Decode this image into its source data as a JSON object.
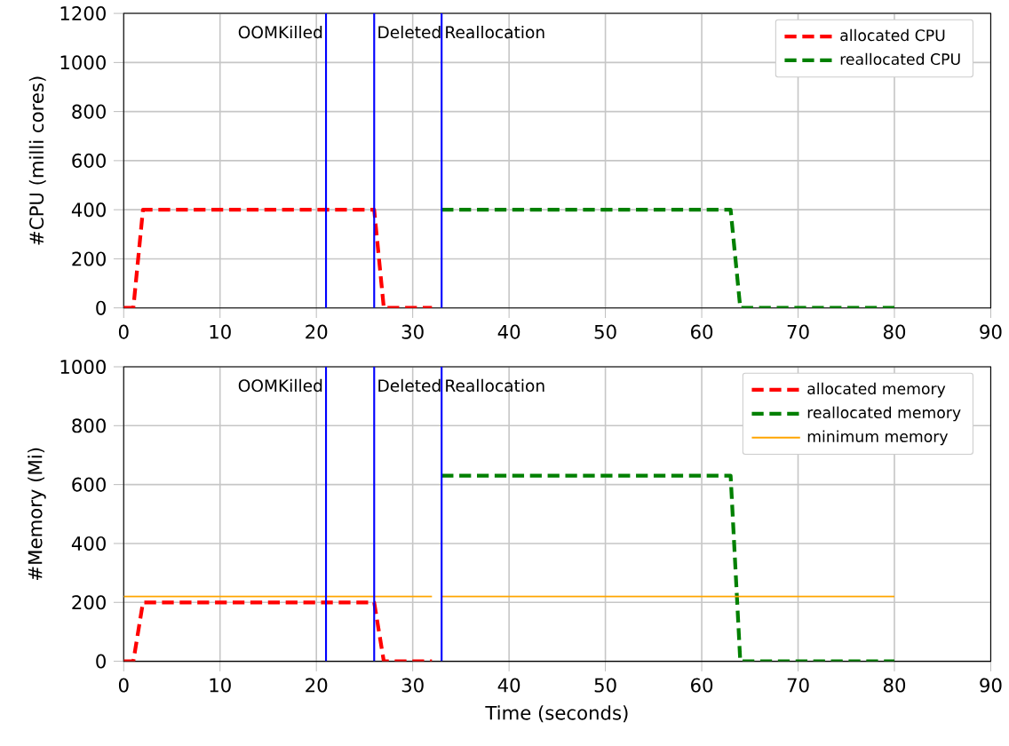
{
  "chart_data": [
    {
      "type": "line",
      "ylabel": "#CPU (milli cores)",
      "xlim": [
        0,
        90
      ],
      "xticks": [
        0,
        10,
        20,
        30,
        40,
        50,
        60,
        70,
        80,
        90
      ],
      "ylim": [
        0,
        1200
      ],
      "yticks": [
        0,
        200,
        400,
        600,
        800,
        1000,
        1200
      ],
      "grid": true,
      "legend": "top right",
      "marker": "none",
      "series": [
        {
          "name": "allocated CPU",
          "color": "#ff0000",
          "line_style": "dashed",
          "x": [
            0,
            1,
            2,
            26,
            27,
            32
          ],
          "values": [
            0,
            0,
            400,
            400,
            0,
            0
          ]
        },
        {
          "name": "reallocated CPU",
          "color": "#008000",
          "line_style": "dashed",
          "x": [
            33,
            63,
            64,
            80
          ],
          "values": [
            400,
            400,
            0,
            0
          ]
        }
      ],
      "ref_lines": [
        {
          "axis": "x",
          "value": 21,
          "label": "OOMKilled",
          "color": "#0000ff"
        },
        {
          "axis": "x",
          "value": 26,
          "label": "Deleted",
          "color": "#0000ff"
        },
        {
          "axis": "x",
          "value": 33,
          "label": "Reallocation",
          "color": "#0000ff"
        }
      ]
    },
    {
      "type": "line",
      "xlabel": "Time (seconds)",
      "ylabel": "#Memory (Mi)",
      "xlim": [
        0,
        90
      ],
      "xticks": [
        0,
        10,
        20,
        30,
        40,
        50,
        60,
        70,
        80,
        90
      ],
      "ylim": [
        0,
        1000
      ],
      "yticks": [
        0,
        200,
        400,
        600,
        800,
        1000
      ],
      "grid": true,
      "legend": "top right",
      "marker": "none",
      "series": [
        {
          "name": "allocated memory",
          "color": "#ff0000",
          "line_style": "dashed",
          "x": [
            0,
            1,
            2,
            26,
            27,
            32
          ],
          "values": [
            0,
            0,
            200,
            200,
            0,
            0
          ]
        },
        {
          "name": "reallocated memory",
          "color": "#008000",
          "line_style": "dashed",
          "x": [
            33,
            63,
            64,
            80
          ],
          "values": [
            630,
            630,
            0,
            0
          ]
        },
        {
          "name": "minimum memory",
          "color": "#ffa500",
          "line_style": "solid",
          "x": [
            0,
            32,
            null,
            33,
            80
          ],
          "values": [
            220,
            220,
            null,
            220,
            220
          ]
        }
      ],
      "ref_lines": [
        {
          "axis": "x",
          "value": 21,
          "label": "OOMKilled",
          "color": "#0000ff"
        },
        {
          "axis": "x",
          "value": 26,
          "label": "Deleted",
          "color": "#0000ff"
        },
        {
          "axis": "x",
          "value": 33,
          "label": "Reallocation",
          "color": "#0000ff"
        }
      ]
    }
  ]
}
